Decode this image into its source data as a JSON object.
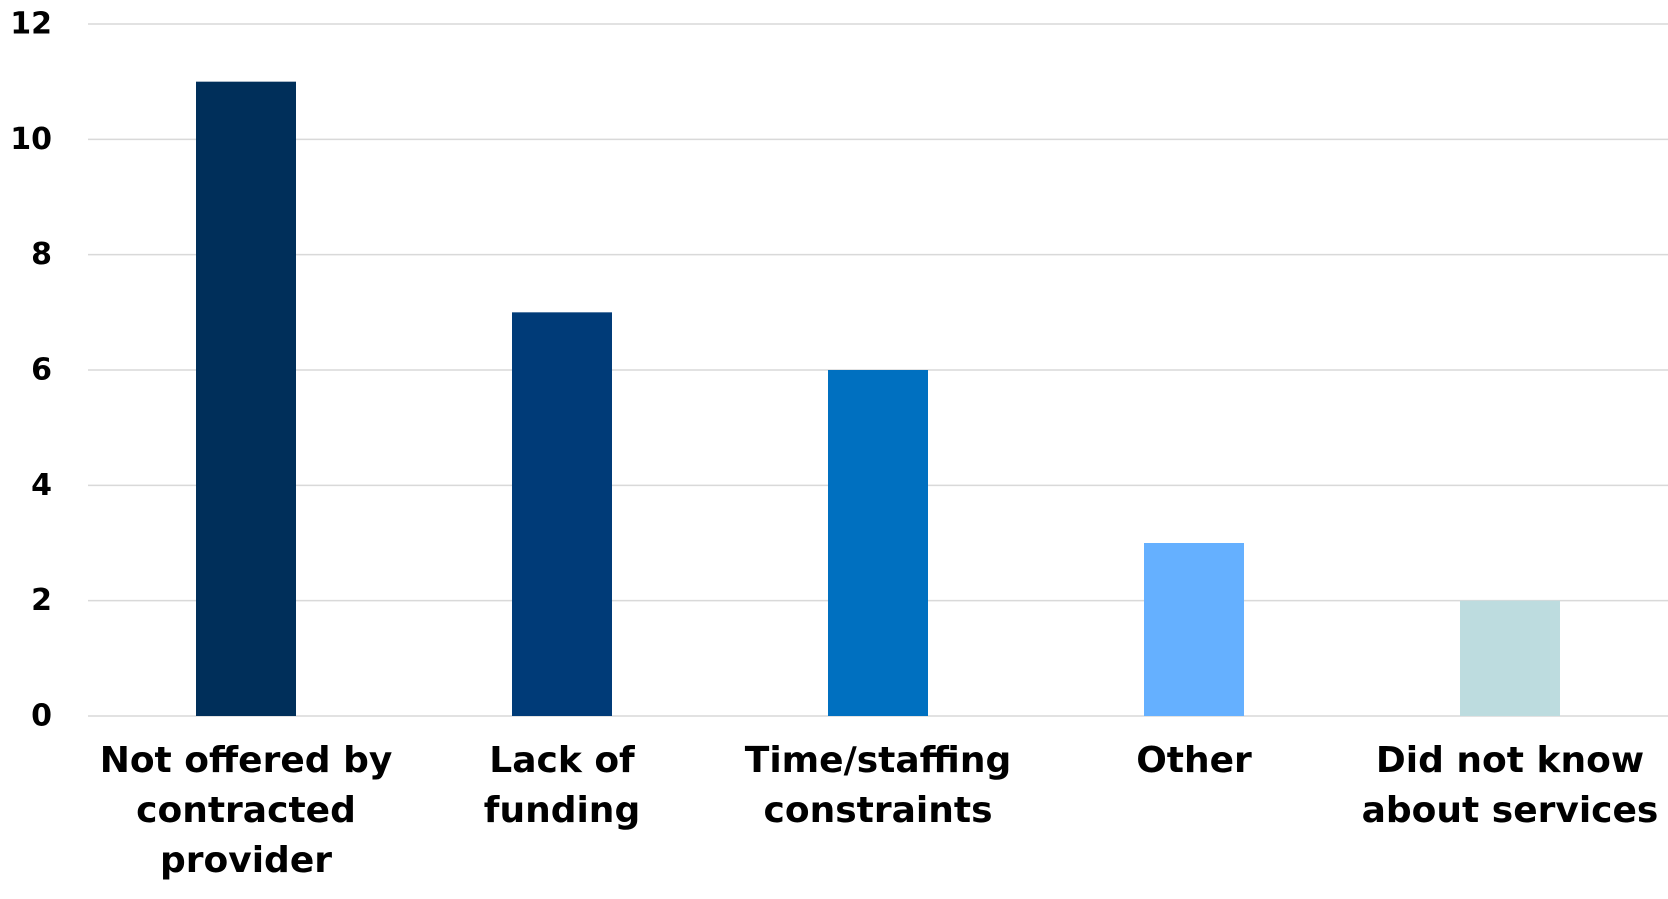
{
  "chart_data": {
    "type": "bar",
    "categories": [
      [
        "Not offered by",
        "contracted",
        "provider"
      ],
      [
        "Lack of",
        "funding"
      ],
      [
        "Time/staffing",
        "constraints"
      ],
      [
        "Other"
      ],
      [
        "Did not know",
        "about services"
      ]
    ],
    "values": [
      11,
      7,
      6,
      3,
      2
    ],
    "colors": [
      "#002f5a",
      "#003b78",
      "#0070c0",
      "#65b0ff",
      "#bddcdf"
    ],
    "ylim": [
      0,
      12
    ],
    "yticks": [
      0,
      2,
      4,
      6,
      8,
      10,
      12
    ],
    "grid": true,
    "gridline_color": "#d9d9d9",
    "title": "",
    "xlabel": "",
    "ylabel": ""
  }
}
